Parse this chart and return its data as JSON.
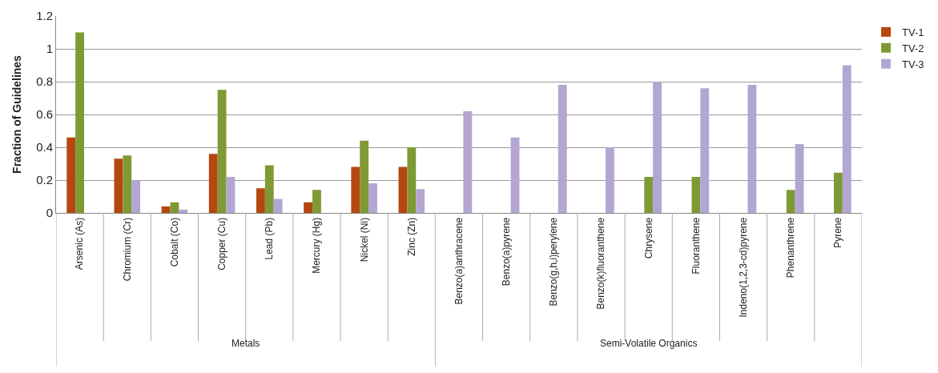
{
  "chart_data": [
    {
      "type": "bar",
      "ylabel": "Fraction of Guidelines",
      "xlabel": "Metals",
      "categories": [
        "Arsenic (As)",
        "Chromium (Cr)",
        "Cobalt (Co)",
        "Copper (Cu)",
        "Lead (Pb)",
        "Mercury (Hg)",
        "Nickel (Ni)",
        "Zinc (Zn)"
      ],
      "series": [
        {
          "name": "TV-1",
          "color": "#b5470f",
          "values": [
            0.46,
            0.33,
            0.04,
            0.36,
            0.15,
            0.065,
            0.28,
            0.28
          ]
        },
        {
          "name": "TV-2",
          "color": "#7f9a35",
          "values": [
            1.1,
            0.35,
            0.065,
            0.75,
            0.29,
            0.14,
            0.44,
            0.4
          ]
        },
        {
          "name": "TV-3",
          "color": "#b3a6d3",
          "values": [
            null,
            0.2,
            0.02,
            0.22,
            0.085,
            null,
            0.18,
            0.145
          ]
        }
      ],
      "ylim": [
        0,
        1.2
      ],
      "yticks": [
        0,
        0.2,
        0.4,
        0.6,
        0.8,
        1,
        1.2
      ],
      "grid": "y",
      "legend": "right"
    },
    {
      "type": "bar",
      "xlabel": "Semi-Volatile Organics",
      "categories": [
        "Benzo(a)anthracene",
        "Benzo(a)pyrene",
        "Benzo(g,h,i)perylene",
        "Benzo(k)fluoranthene",
        "Chrysene",
        "Fluoranthene",
        "Indeno(1,2,3-cd)pyrene",
        "Phenanthrene",
        "Pyrene"
      ],
      "series": [
        {
          "name": "TV-2",
          "color": "#7f9a35",
          "values": [
            null,
            null,
            null,
            null,
            0.22,
            0.22,
            null,
            0.14,
            0.245
          ]
        },
        {
          "name": "TV-3",
          "color": "#b3a6d3",
          "values": [
            0.62,
            0.46,
            0.78,
            0.4,
            0.8,
            0.76,
            0.78,
            0.42,
            0.9
          ]
        }
      ],
      "ylim": [
        0,
        1.2
      ],
      "yticks": [
        0,
        0.2,
        0.4,
        0.6,
        0.8,
        1,
        1.2
      ],
      "grid": "y",
      "tick_labels": "x",
      "legend": "right"
    }
  ]
}
